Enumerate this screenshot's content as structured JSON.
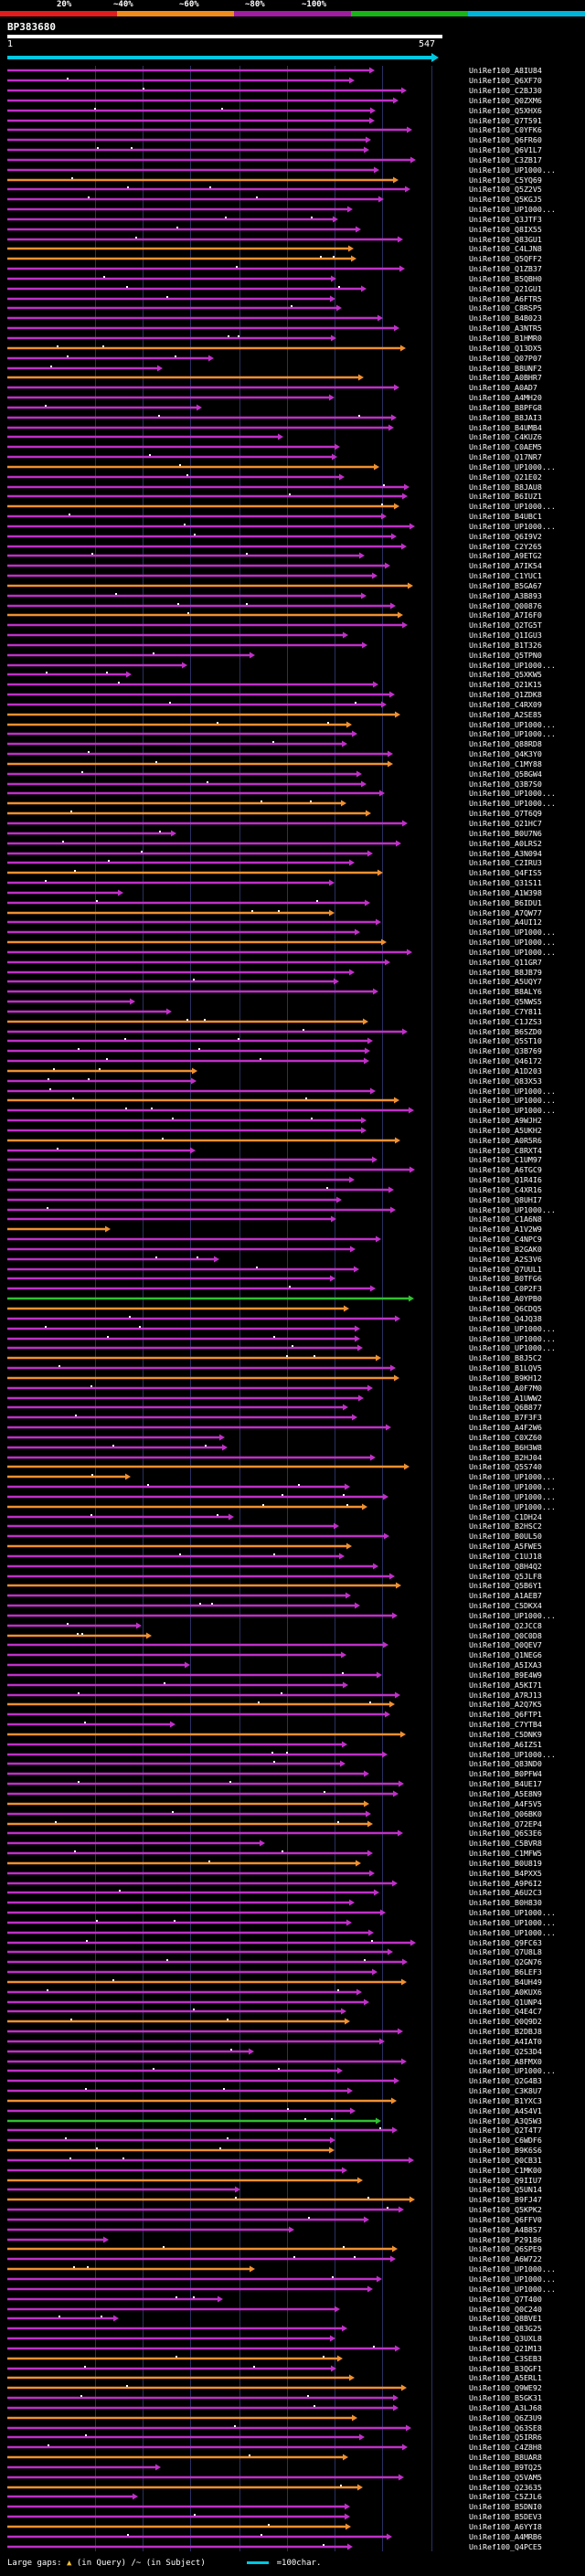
{
  "legend": {
    "labels": [
      "20%",
      "~40%",
      "~60%",
      "~80%",
      "~100%"
    ],
    "colors": [
      "#e21c1c",
      "#f08c1c",
      "#a01ca0",
      "#18b418",
      "#00b4d8"
    ]
  },
  "query": {
    "id": "BP383680",
    "start": "1",
    "end": "547",
    "consensus_color": "#00c8e0"
  },
  "hit_colors": {
    "orange": "#f09030",
    "purple": "#c030c8",
    "green": "#30c030"
  },
  "hit_pattern": "PPPPPPPPPPPOPPPPPPOOPPPPPPPPOPPOPPPPPPPPOPPPOPPPPPPPOPPOPPPPPPPPPOOPPPOPPPOOPPPPPOPPPOPPOPPPPPPPOPPPPOPPOPPPOPPPPPPPPOPPPPPPGOPPPPOPOPPPPPPPPOOPPOPPPOPPPOPPPPOPPPPPPOPPOPPPPPPOPOPPPOPPPPPPPPPPPOPPPOPPPPPPPOPGPPOPPOPOPPPPOPOPPPPPPPPOPOOPPOPPPOPPOPPPOPPOOPPPPOPOPPPOPPOOPPOPPOPOPPPPPOOPOOPOPPPOOOPPOPOPPPPOOOPPPPPOOPPPPOPPOPPPOPOPPPOPPPPOPOPPPPPPPPPPOPOPPPOOPOPPPPOPPPPOPPPOPPOOOPPPPPOOOPPPOOOPOPOPOOOOPPPPPPPPPPOPPOOPPPPPPPPPPOPOOPPPPOOPPPOPPP",
  "hits": [
    "UniRef100_A8IU84",
    "UniRef100_Q6XF70",
    "UniRef100_C2BJ30",
    "UniRef100_Q0ZXM6",
    "UniRef100_Q5XHX6",
    "UniRef100_Q7T591",
    "UniRef100_C0YFK6",
    "UniRef100_Q6FR60",
    "UniRef100_Q6V1L7",
    "UniRef100_C3ZB17",
    "UniRef100_UP1000...",
    "UniRef100_C5YQ69",
    "UniRef100_Q5Z2V5",
    "UniRef100_Q5KGJ5",
    "UniRef100_UP1000...",
    "UniRef100_Q3JTF3",
    "UniRef100_Q8IX55",
    "UniRef100_Q83GU1",
    "UniRef100_C4LJN8",
    "UniRef100_Q5QFF2",
    "UniRef100_Q1ZB37",
    "UniRef100_B5QBH0",
    "UniRef100_Q21GU1",
    "UniRef100_A6FTR5",
    "UniRef100_C8RSP5",
    "UniRef100_B4B023",
    "UniRef100_A3NTR5",
    "UniRef100_B1HMR0",
    "UniRef100_Q13DX5",
    "UniRef100_Q07P07",
    "UniRef100_B8UNF2",
    "UniRef100_A0BHR7",
    "UniRef100_A0AD7",
    "UniRef100_A4MH20",
    "UniRef100_B8PFG8",
    "UniRef100_B8JAI3",
    "UniRef100_B4UMB4",
    "UniRef100_C4KUZ6",
    "UniRef100_C0AEM5",
    "UniRef100_Q17NR7",
    "UniRef100_UP1000...",
    "UniRef100_Q21E02",
    "UniRef100_B8JAU8",
    "UniRef100_B6IUZ1",
    "UniRef100_UP1000...",
    "UniRef100_B4UBC1",
    "UniRef100_UP1000...",
    "UniRef100_Q6I9V2",
    "UniRef100_C2Y265",
    "UniRef100_A9ETG2",
    "UniRef100_A7IK54",
    "UniRef100_C1YUC1",
    "UniRef100_B5GA67",
    "UniRef100_A3B893",
    "UniRef100_Q00876",
    "UniRef100_A7I6F0",
    "UniRef100_Q2TG5T",
    "UniRef100_Q1IGU3",
    "UniRef100_B1T326",
    "UniRef100_Q5TPN0",
    "UniRef100_UP1000...",
    "UniRef100_Q5XKW5",
    "UniRef100_Q21K15",
    "UniRef100_Q1ZDK8",
    "UniRef100_C4RX09",
    "UniRef100_A2SE85",
    "UniRef100_UP1000...",
    "UniRef100_UP1000...",
    "UniRef100_Q88RD8",
    "UniRef100_Q4K3Y0",
    "UniRef100_C1MY88",
    "UniRef100_Q5BGW4",
    "UniRef100_Q3B7S0",
    "UniRef100_UP1000...",
    "UniRef100_UP1000...",
    "UniRef100_Q7T6Q9",
    "UniRef100_Q21HC7",
    "UniRef100_B0U7N6",
    "UniRef100_A0LRS2",
    "UniRef100_A3N094",
    "UniRef100_C2IRU3",
    "UniRef100_Q4FIS5",
    "UniRef100_Q31S11",
    "UniRef100_A1W398",
    "UniRef100_B6IDU1",
    "UniRef100_A7QW77",
    "UniRef100_A4UI12",
    "UniRef100_UP1000...",
    "UniRef100_UP1000...",
    "UniRef100_UP1000...",
    "UniRef100_Q11GR7",
    "UniRef100_B8JB79",
    "UniRef100_A5UQY7",
    "UniRef100_B8ALY6",
    "UniRef100_Q5NWS5",
    "UniRef100_C7Y811",
    "UniRef100_C1JZS3",
    "UniRef100_B6SZD0",
    "UniRef100_Q5ST10",
    "UniRef100_Q3B769",
    "UniRef100_Q46172",
    "UniRef100_A1D203",
    "UniRef100_Q83X53",
    "UniRef100_UP1000...",
    "UniRef100_UP1000...",
    "UniRef100_UP1000...",
    "UniRef100_A9WJH2",
    "UniRef100_A5UKH2",
    "UniRef100_A0R5R6",
    "UniRef100_C8RXT4",
    "UniRef100_C1UM97",
    "UniRef100_A6TGC9",
    "UniRef100_Q1R4I6",
    "UniRef100_C4XR16",
    "UniRef100_Q8UHI7",
    "UniRef100_UP1000...",
    "UniRef100_C1A6N8",
    "UniRef100_A1V2W9",
    "UniRef100_C4NPC9",
    "UniRef100_B2GAK0",
    "UniRef100_A2S3V6",
    "UniRef100_Q7UUL1",
    "UniRef100_B0TFG6",
    "UniRef100_C0P2F3",
    "UniRef100_A0YPB0",
    "UniRef100_Q6CDQ5",
    "UniRef100_Q4JQ38",
    "UniRef100_UP1000...",
    "UniRef100_UP1000...",
    "UniRef100_UP1000...",
    "UniRef100_B8J5C2",
    "UniRef100_B1LQV5",
    "UniRef100_B9KH12",
    "UniRef100_A0F7M0",
    "UniRef100_A1UWW2",
    "UniRef100_Q6B877",
    "UniRef100_B7F3F3",
    "UniRef100_A4F2W6",
    "UniRef100_C0XZ60",
    "UniRef100_B6H3W8",
    "UniRef100_B2HJ04",
    "UniRef100_Q5S740",
    "UniRef100_UP1000...",
    "UniRef100_UP1000...",
    "UniRef100_UP1000...",
    "UniRef100_UP1000...",
    "UniRef100_C1DH24",
    "UniRef100_B2HSC2",
    "UniRef100_B0UL50",
    "UniRef100_A5FWE5",
    "UniRef100_C1UJ18",
    "UniRef100_Q8H4Q2",
    "UniRef100_Q5JLF8",
    "UniRef100_Q5B6Y1",
    "UniRef100_A1AEB7",
    "UniRef100_C5DKX4",
    "UniRef100_UP1000...",
    "UniRef100_Q2JCC8",
    "UniRef100_Q0C0D8",
    "UniRef100_Q0QEV7",
    "UniRef100_Q1NEG6",
    "UniRef100_A5IXA3",
    "UniRef100_B9E4W9",
    "UniRef100_A5KI71",
    "UniRef100_A7RJ13",
    "UniRef100_A2Q7K5",
    "UniRef100_Q6FTP1",
    "UniRef100_C7YTB4",
    "UniRef100_C5DNK9",
    "UniRef100_A6IZS1",
    "UniRef100_UP1000...",
    "UniRef100_Q83ND0",
    "UniRef100_B0PFW4",
    "UniRef100_B4UE17",
    "UniRef100_A5E8N9",
    "UniRef100_A4F5V5",
    "UniRef100_Q06BK0",
    "UniRef100_Q72EP4",
    "UniRef100_Q6S3E6",
    "UniRef100_C5BVR8",
    "UniRef100_C1MFW5",
    "UniRef100_B0U819",
    "UniRef100_B4PXX5",
    "UniRef100_A9P6I2",
    "UniRef100_A6U2C3",
    "UniRef100_B0H830",
    "UniRef100_UP1000...",
    "UniRef100_UP1000...",
    "UniRef100_UP1000...",
    "UniRef100_Q9FC63",
    "UniRef100_Q7U8L8",
    "UniRef100_Q2GN76",
    "UniRef100_B6LEF3",
    "UniRef100_B4UH49",
    "UniRef100_A0KUX6",
    "UniRef100_Q1UNP4",
    "UniRef100_Q4E4C7",
    "UniRef100_Q0Q9D2",
    "UniRef100_B2DBJ8",
    "UniRef100_A4IAT0",
    "UniRef100_Q2S3D4",
    "UniRef100_A8FMX0",
    "UniRef100_UP1000...",
    "UniRef100_Q2G4B3",
    "UniRef100_C3K8U7",
    "UniRef100_B1YXC3",
    "UniRef100_A4S4V1",
    "UniRef100_A3Q5W3",
    "UniRef100_Q2T4T7",
    "UniRef100_C6WDF6",
    "UniRef100_B9K6S6",
    "UniRef100_Q0CB31",
    "UniRef100_C1MK00",
    "UniRef100_Q9IIU7",
    "UniRef100_Q5UN14",
    "UniRef100_B9FJ47",
    "UniRef100_Q5KPK2",
    "UniRef100_Q6FFV0",
    "UniRef100_A4B8S7",
    "UniRef100_P29186",
    "UniRef100_Q6SPE9",
    "UniRef100_A6W722",
    "UniRef100_UP1000...",
    "UniRef100_UP1000...",
    "UniRef100_UP1000...",
    "UniRef100_Q7T400",
    "UniRef100_Q0C240",
    "UniRef100_Q8BVE1",
    "UniRef100_Q83G25",
    "UniRef100_Q3UXL8",
    "UniRef100_Q21M13",
    "UniRef100_C3SEB3",
    "UniRef100_B3QGF1",
    "UniRef100_A5ERL1",
    "UniRef100_Q9WE92",
    "UniRef100_B5GK31",
    "UniRef100_A3LJ68",
    "UniRef100_Q6Z3U9",
    "UniRef100_Q63SE8",
    "UniRef100_Q5IRR6",
    "UniRef100_C4Z8H8",
    "UniRef100_B8UAR8",
    "UniRef100_B9TQ25",
    "UniRef100_Q5VAM5",
    "UniRef100_Q23635",
    "UniRef100_C5ZJL6",
    "UniRef100_B5DNI0",
    "UniRef100_B5DEV3",
    "UniRef100_A6YYI8",
    "UniRef100_A4MRB6",
    "UniRef100_Q4PCE5"
  ],
  "footer": {
    "gaps_label": "Large gaps:",
    "gaps_query": "(in Query)",
    "gaps_subject": "/~ (in Subject)",
    "scale_label": "=100char."
  }
}
